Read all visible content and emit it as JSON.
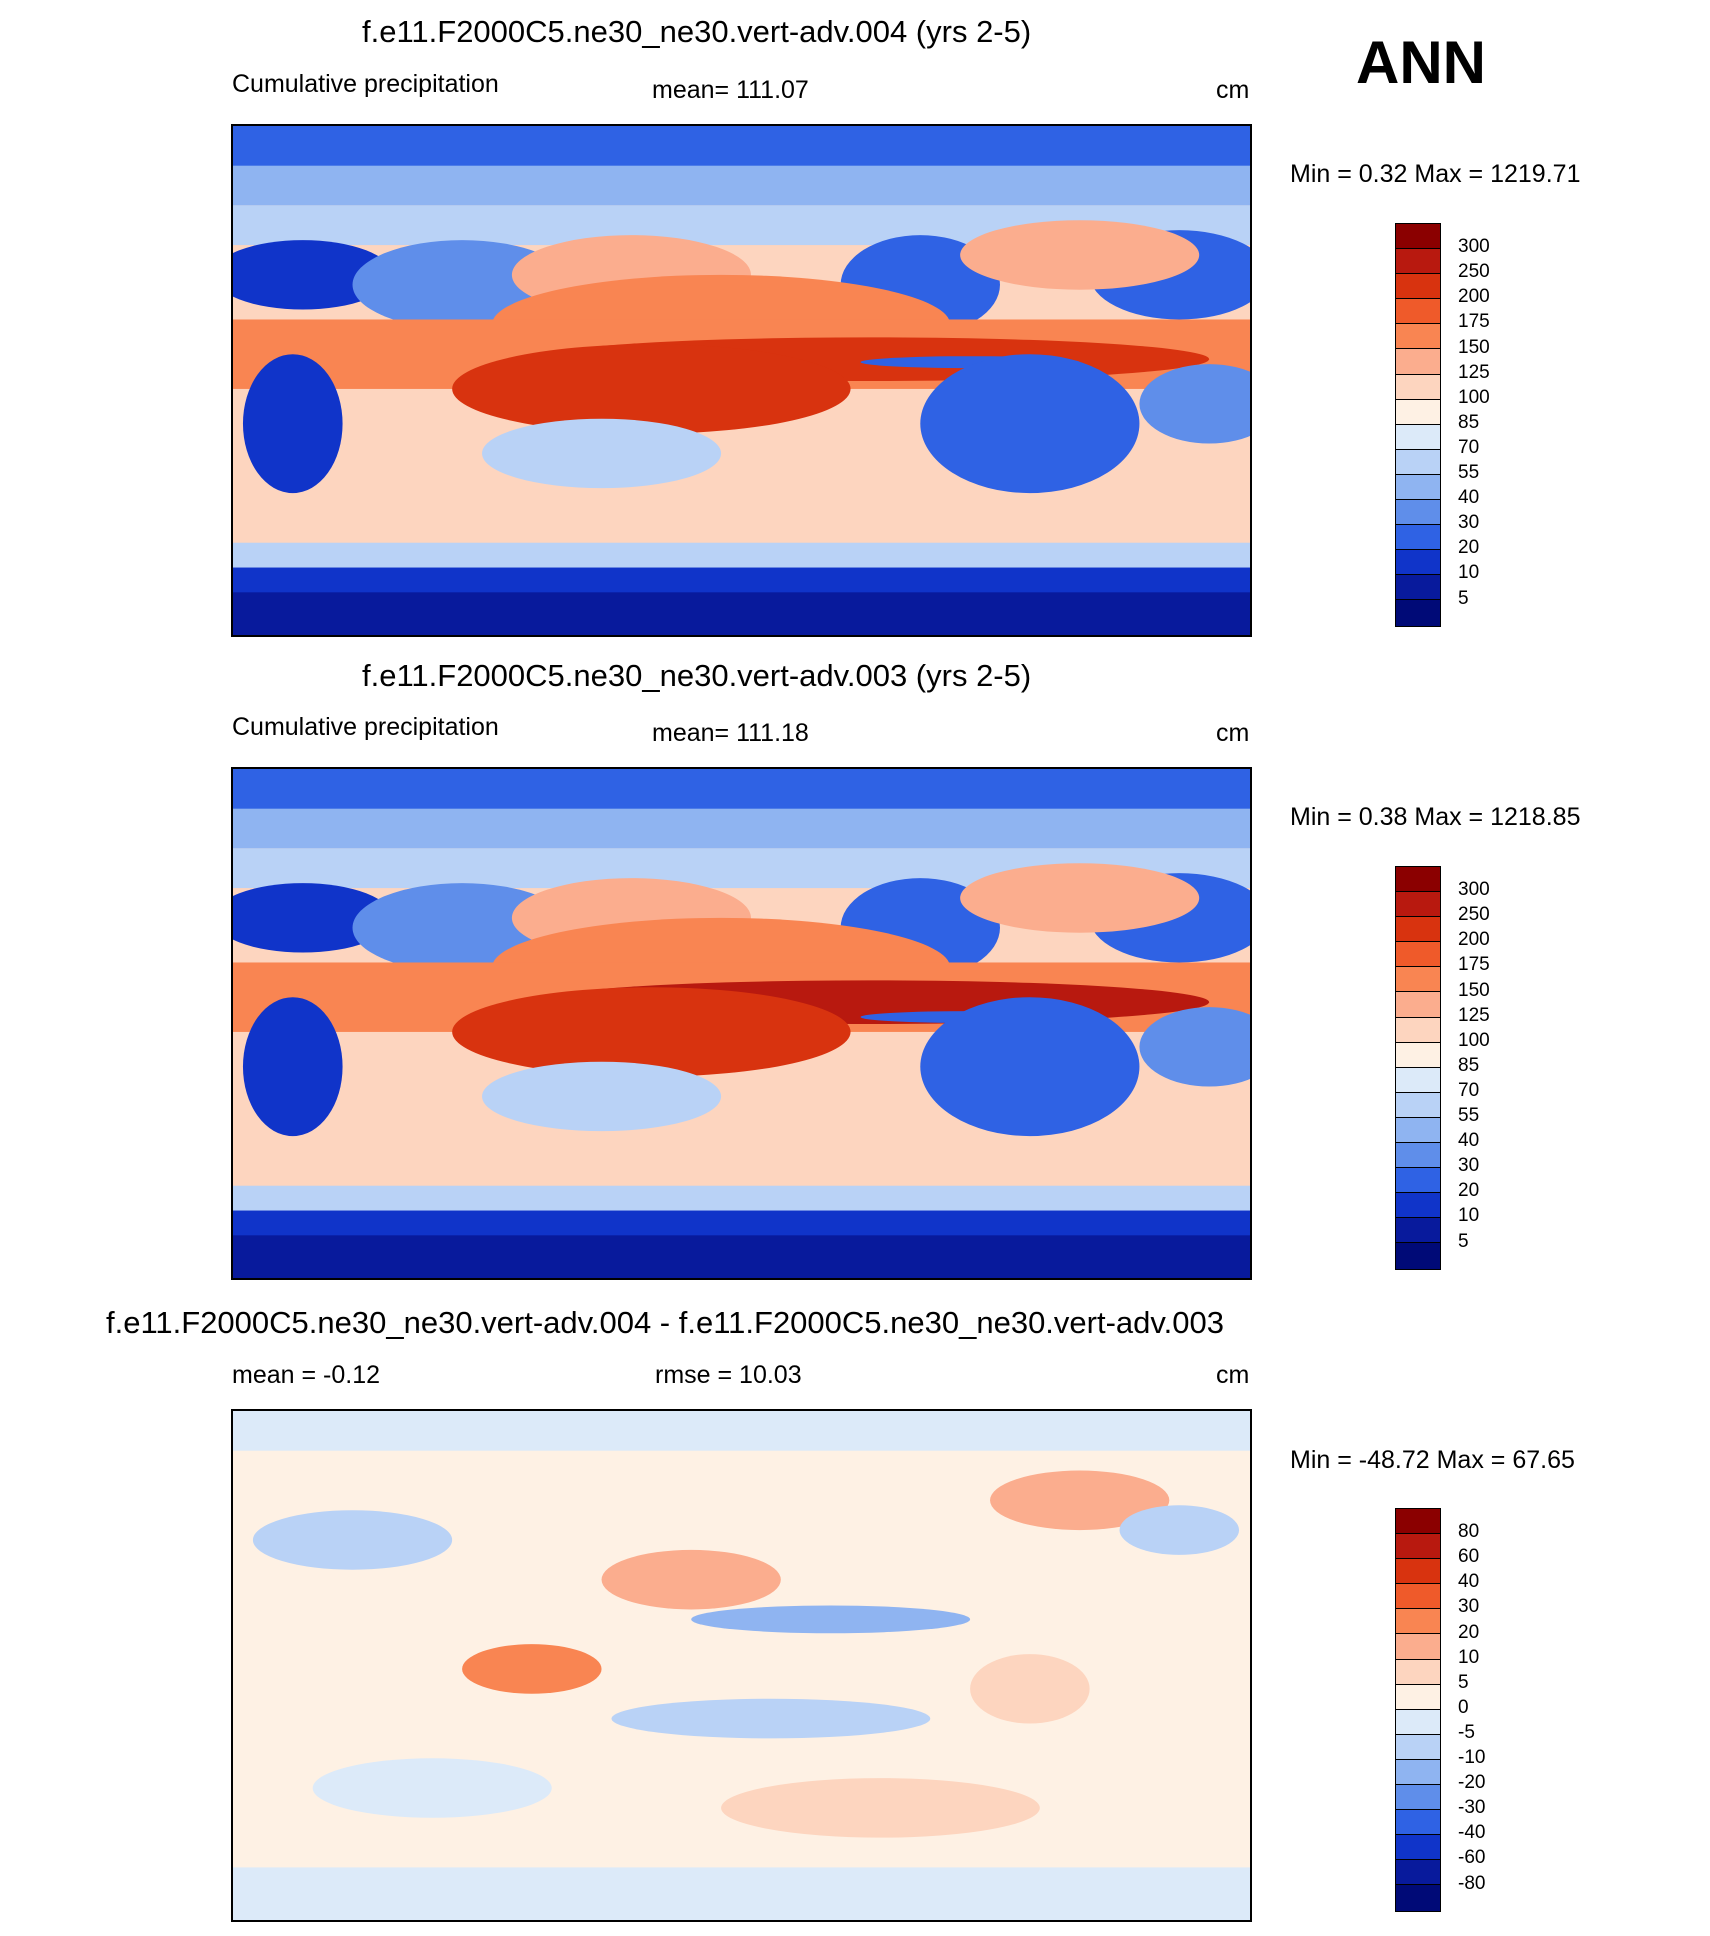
{
  "season": "ANN",
  "units": "cm",
  "panels": [
    {
      "title": "f.e11.F2000C5.ne30_ne30.vert-adv.004 (yrs 2-5)",
      "left_label": "Cumulative precipitation",
      "center_label": "mean= 111.07",
      "right_label": "cm",
      "minmax": "Min =    0.32 Max = 1219.71",
      "colorbar": {
        "labels": [
          "300",
          "250",
          "200",
          "175",
          "150",
          "125",
          "100",
          "85",
          "70",
          "55",
          "40",
          "30",
          "20",
          "10",
          "5"
        ],
        "colors": [
          "#8b0000",
          "#b8190f",
          "#d8330f",
          "#ef5a2a",
          "#f98552",
          "#fbad8e",
          "#fdd5bf",
          "#fef1e4",
          "#dceaf9",
          "#b9d2f6",
          "#8fb4f1",
          "#5f8eea",
          "#2f62e4",
          "#1034c9",
          "#081a9c",
          "#000a77"
        ]
      }
    },
    {
      "title": "f.e11.F2000C5.ne30_ne30.vert-adv.003 (yrs 2-5)",
      "left_label": "Cumulative precipitation",
      "center_label": "mean= 111.18",
      "right_label": "cm",
      "minmax": "Min =    0.38 Max = 1218.85",
      "colorbar": {
        "labels": [
          "300",
          "250",
          "200",
          "175",
          "150",
          "125",
          "100",
          "85",
          "70",
          "55",
          "40",
          "30",
          "20",
          "10",
          "5"
        ],
        "colors": [
          "#8b0000",
          "#b8190f",
          "#d8330f",
          "#ef5a2a",
          "#f98552",
          "#fbad8e",
          "#fdd5bf",
          "#fef1e4",
          "#dceaf9",
          "#b9d2f6",
          "#8fb4f1",
          "#5f8eea",
          "#2f62e4",
          "#1034c9",
          "#081a9c",
          "#000a77"
        ]
      }
    },
    {
      "title": "f.e11.F2000C5.ne30_ne30.vert-adv.004 - f.e11.F2000C5.ne30_ne30.vert-adv.003",
      "left_label": "mean =  -0.12",
      "center_label": "rmse =  10.03",
      "right_label": "cm",
      "minmax": "Min = -48.72 Max =  67.65",
      "colorbar": {
        "labels": [
          "80",
          "60",
          "40",
          "30",
          "20",
          "10",
          "5",
          "0",
          "-5",
          "-10",
          "-20",
          "-30",
          "-40",
          "-60",
          "-80"
        ],
        "colors": [
          "#8b0000",
          "#b8190f",
          "#d8330f",
          "#ef5a2a",
          "#f98552",
          "#fbad8e",
          "#fdd5bf",
          "#fef1e4",
          "#dceaf9",
          "#b9d2f6",
          "#8fb4f1",
          "#5f8eea",
          "#2f62e4",
          "#1034c9",
          "#081a9c",
          "#000a77"
        ]
      }
    }
  ]
}
